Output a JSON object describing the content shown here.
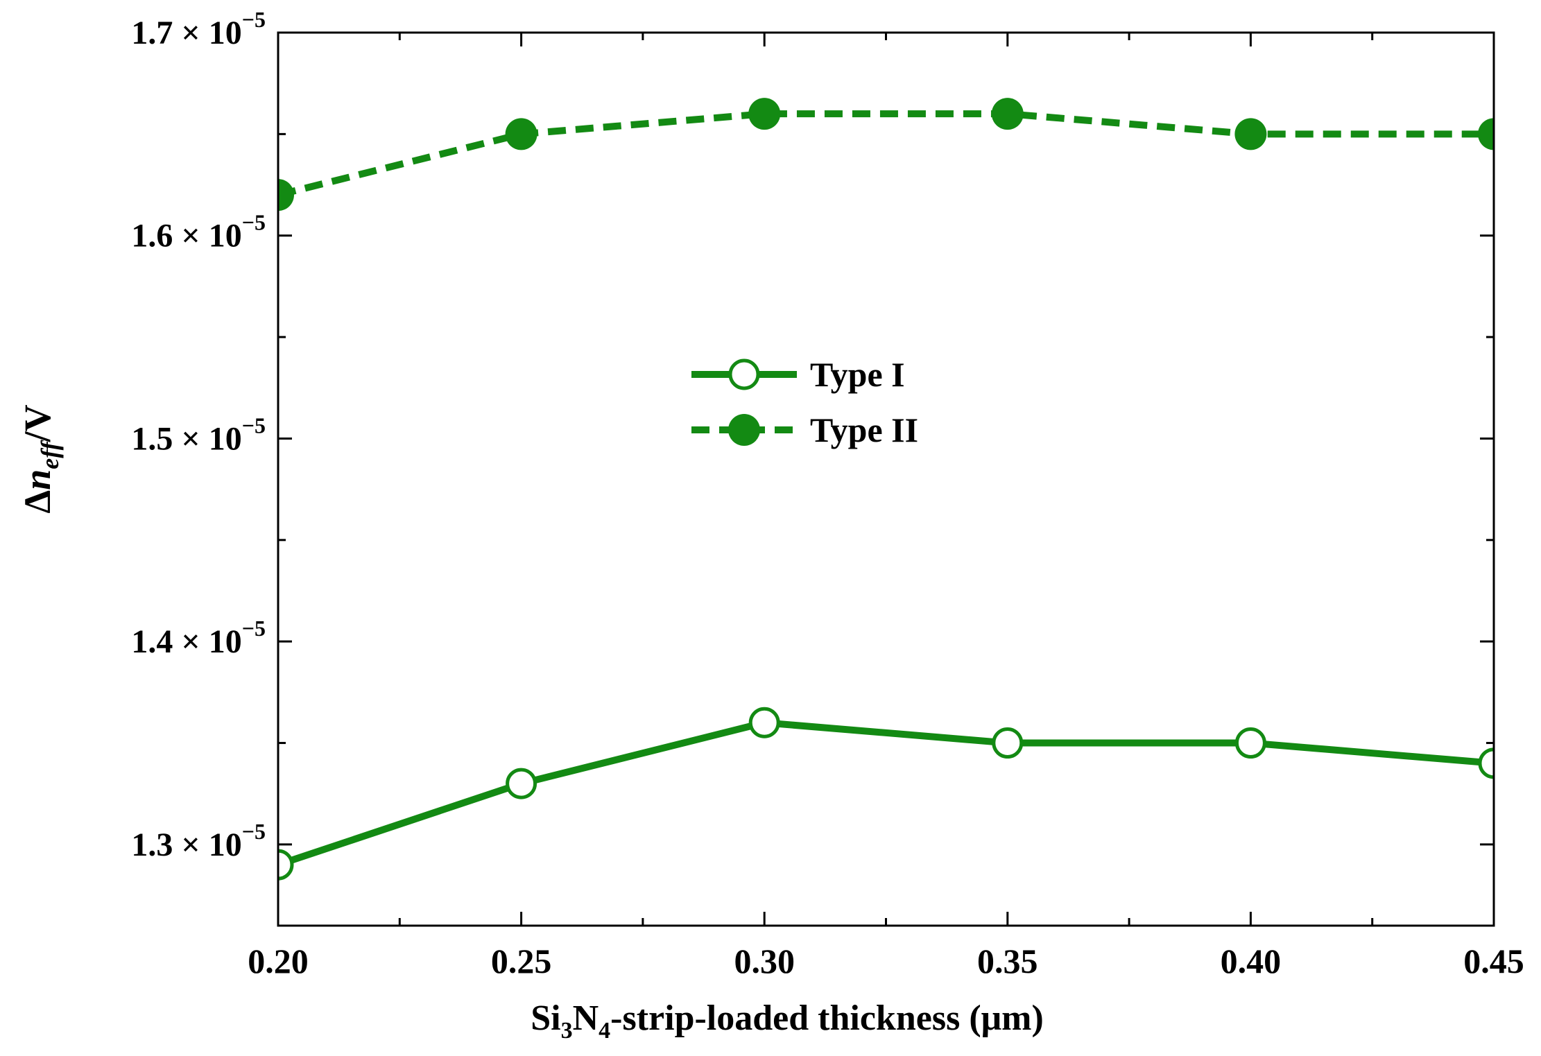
{
  "chart_data": {
    "type": "line",
    "title": "",
    "xlabel": {
      "prefix": "Si",
      "sub1": "3",
      "mid": "N",
      "sub2": "4",
      "suffix": "-strip-loaded thickness (μm)"
    },
    "ylabel": {
      "prefix": "Δ",
      "italic": "n",
      "sub": "eff",
      "suffix": "/V"
    },
    "x": [
      0.2,
      0.25,
      0.3,
      0.35,
      0.4,
      0.45
    ],
    "xlim": [
      0.2,
      0.45
    ],
    "ylim": [
      1.26e-05,
      1.7e-05
    ],
    "x_ticks": [
      {
        "value": 0.2,
        "label": "0.20"
      },
      {
        "value": 0.25,
        "label": "0.25"
      },
      {
        "value": 0.3,
        "label": "0.30"
      },
      {
        "value": 0.35,
        "label": "0.35"
      },
      {
        "value": 0.4,
        "label": "0.40"
      },
      {
        "value": 0.45,
        "label": "0.45"
      }
    ],
    "x_minor_ticks": [
      0.225,
      0.275,
      0.325,
      0.375,
      0.425
    ],
    "y_ticks": [
      {
        "value": 1.3e-05,
        "mantissa": "1.3",
        "base": " × 10",
        "exp": "−5"
      },
      {
        "value": 1.4e-05,
        "mantissa": "1.4",
        "base": " × 10",
        "exp": "−5"
      },
      {
        "value": 1.5e-05,
        "mantissa": "1.5",
        "base": " × 10",
        "exp": "−5"
      },
      {
        "value": 1.6e-05,
        "mantissa": "1.6",
        "base": " × 10",
        "exp": "−5"
      },
      {
        "value": 1.7e-05,
        "mantissa": "1.7",
        "base": " × 10",
        "exp": "−5"
      }
    ],
    "y_minor_ticks": [
      1.35e-05,
      1.45e-05,
      1.55e-05,
      1.65e-05
    ],
    "series": [
      {
        "name": "Type I",
        "values": [
          1.29e-05,
          1.33e-05,
          1.36e-05,
          1.35e-05,
          1.35e-05,
          1.34e-05
        ],
        "line_style": "solid",
        "marker": "open-circle",
        "color": "#138a13"
      },
      {
        "name": "Type II",
        "values": [
          1.62e-05,
          1.65e-05,
          1.66e-05,
          1.66e-05,
          1.65e-05,
          1.65e-05
        ],
        "line_style": "dashed",
        "marker": "filled-circle",
        "color": "#138a13"
      }
    ],
    "legend_position": "center",
    "grid": false
  }
}
